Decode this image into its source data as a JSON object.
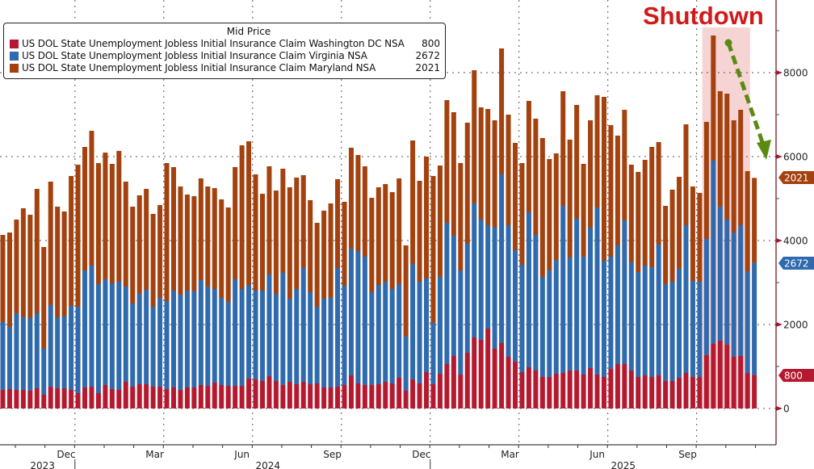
{
  "chart_data": {
    "type": "bar",
    "stacked": true,
    "title": "",
    "legend_title": "Mid Price",
    "legend_position": "top-left",
    "xlabel": "",
    "ylabel": "",
    "ylim": [
      0,
      9000
    ],
    "yticks": [
      0,
      2000,
      4000,
      6000,
      8000
    ],
    "grid": true,
    "x_month_ticks": [
      {
        "label": "Dec",
        "week_index": 11
      },
      {
        "label": "Mar",
        "week_index": 24
      },
      {
        "label": "Jun",
        "week_index": 37
      },
      {
        "label": "Sep",
        "week_index": 50
      },
      {
        "label": "Dec",
        "week_index": 63
      },
      {
        "label": "Mar",
        "week_index": 76
      },
      {
        "label": "Jun",
        "week_index": 89
      },
      {
        "label": "Sep",
        "week_index": 102
      }
    ],
    "x_year_labels": [
      {
        "label": "2023",
        "week_index": 4
      },
      {
        "label": "2024",
        "week_index": 37
      },
      {
        "label": "2025",
        "week_index": 89
      }
    ],
    "frequency": "weekly",
    "series": [
      {
        "name": "US DOL State Unemployment Jobless Initial Insurance Claim Washington DC NSA",
        "color": "#b5192f",
        "last_value": "800",
        "values": [
          442,
          462,
          442,
          442,
          423,
          481,
          327,
          519,
          481,
          481,
          442,
          365,
          500,
          519,
          365,
          558,
          462,
          442,
          635,
          519,
          577,
          577,
          519,
          519,
          462,
          500,
          442,
          500,
          500,
          558,
          538,
          615,
          558,
          538,
          538,
          538,
          712,
          692,
          654,
          769,
          654,
          558,
          635,
          577,
          635,
          577,
          596,
          500,
          500,
          519,
          558,
          788,
          596,
          558,
          558,
          577,
          635,
          596,
          731,
          423,
          692,
          596,
          865,
          577,
          827,
          1058,
          1250,
          808,
          1327,
          1692,
          1635,
          1904,
          1423,
          1558,
          1231,
          1115,
          865,
          981,
          904,
          750,
          750,
          827,
          846,
          904,
          904,
          808,
          962,
          808,
          750,
          942,
          1058,
          1058,
          904,
          750,
          788,
          750,
          788,
          654,
          654,
          731,
          846,
          750,
          750,
          1269,
          1538,
          1615,
          1519,
          1231,
          1250,
          846,
          800
        ]
      },
      {
        "name": "US DOL State Unemployment Jobless Initial Insurance Claim Virginia NSA",
        "color": "#2e6aad",
        "last_value": "2672",
        "values": [
          1616,
          1480,
          1827,
          1731,
          1731,
          1788,
          1096,
          1943,
          1692,
          1711,
          2000,
          2058,
          2788,
          2885,
          2597,
          2519,
          2519,
          2577,
          2269,
          1981,
          2154,
          2250,
          1904,
          2116,
          2096,
          2308,
          2270,
          2308,
          2288,
          2500,
          2366,
          2231,
          2077,
          2000,
          2539,
          2308,
          2230,
          2116,
          2154,
          2423,
          2077,
          2673,
          1980,
          2269,
          2711,
          2192,
          1827,
          2115,
          2154,
          2827,
          2365,
          3020,
          3154,
          3057,
          2211,
          2365,
          2384,
          2250,
          2231,
          1289,
          2750,
          2423,
          2231,
          1461,
          2308,
          3365,
          2865,
          2480,
          2596,
          3193,
          2865,
          2461,
          2885,
          4019,
          3134,
          2654,
          2558,
          3692,
          3231,
          2385,
          2538,
          2711,
          3981,
          2692,
          3615,
          2807,
          3346,
          3980,
          2769,
          2673,
          2827,
          3423,
          2577,
          2500,
          2616,
          2615,
          3116,
          2308,
          2365,
          2596,
          3519,
          2288,
          2269,
          2769,
          4366,
          3193,
          2981,
          2961,
          3115,
          2423,
          2672
        ]
      },
      {
        "name": "US DOL State Unemployment Jobless Initial Insurance Claim Maryland NSA",
        "color": "#a3420f",
        "last_value": "2021",
        "values": [
          2077,
          2250,
          2231,
          2596,
          2461,
          2962,
          2423,
          2942,
          2635,
          2500,
          3096,
          3385,
          2943,
          3211,
          2884,
          3019,
          2846,
          3116,
          2500,
          2308,
          2346,
          2404,
          2212,
          2211,
          3288,
          2942,
          2576,
          2288,
          2270,
          2423,
          2384,
          2404,
          2346,
          2250,
          2673,
          3423,
          3423,
          2769,
          2307,
          2577,
          2461,
          2481,
          2654,
          2654,
          2212,
          2193,
          2000,
          2097,
          2231,
          2116,
          2000,
          2404,
          2288,
          2154,
          2250,
          2327,
          2327,
          2308,
          2519,
          2173,
          2943,
          2404,
          2904,
          3500,
          2653,
          2923,
          2943,
          2558,
          2885,
          3173,
          2673,
          2770,
          2557,
          3000,
          2635,
          2558,
          2423,
          2654,
          2769,
          3307,
          2654,
          2539,
          2731,
          2808,
          2712,
          2212,
          2557,
          2674,
          3904,
          3135,
          2615,
          2634,
          2327,
          2385,
          2519,
          2866,
          2442,
          1865,
          2193,
          2192,
          2404,
          2250,
          2116,
          2789,
          2981,
          2750,
          3000,
          2673,
          2750,
          2385,
          2021
        ]
      }
    ],
    "annotations": [
      {
        "type": "text",
        "text": "Shutdown",
        "color": "#d11a1a"
      },
      {
        "type": "shaded_region",
        "label": "Shutdown",
        "from_week_index": 103,
        "to_week_index": 109,
        "color": "#f7d4d4"
      },
      {
        "type": "dashed_arrow",
        "color": "#5b8a12",
        "from_week_index": 105,
        "from_value": 8700,
        "to_week_index": 111,
        "to_value": 5900
      }
    ]
  }
}
